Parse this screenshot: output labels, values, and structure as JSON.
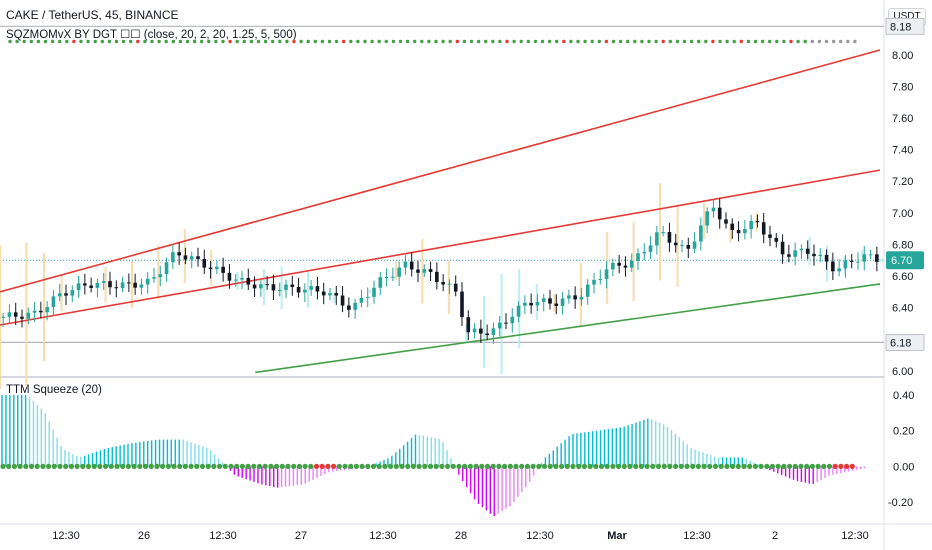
{
  "header": {
    "symbol_line": "CAKE / TetherUS, 45, BINANCE",
    "study_top": "SQZMOMvX BY DGT ☐☐ (close, 20, 2, 20, 1.25, 5, 500)",
    "study_bottom": "TTM Squeeze (20)",
    "unit_button": "USDT"
  },
  "colors": {
    "bull_candle": "#26a69a",
    "bear_candle": "#131722",
    "channel_upper": "#e53935",
    "support_line": "#43a047",
    "momentum_up": "#4dd0e1",
    "momentum_down": "#e040fb",
    "squeeze_on": "#e53935",
    "squeeze_off": "#43a047"
  },
  "chart_data": [
    {
      "type": "candlestick",
      "y_axis_ticks": [
        "8.00",
        "7.80",
        "7.60",
        "7.40",
        "7.20",
        "7.00",
        "6.80",
        "6.60",
        "6.40",
        "6.00"
      ],
      "ylim": [
        5.98,
        8.22
      ],
      "markers": {
        "horizontal_levels": [
          {
            "label": "8.18",
            "value": 8.18
          },
          {
            "label": "6.18",
            "value": 6.18
          }
        ],
        "last_price": {
          "label": "6.70",
          "value": 6.7
        }
      },
      "x_tick_labels": [
        "12:30",
        "26",
        "12:30",
        "27",
        "12:30",
        "28",
        "12:30",
        "Mar",
        "12:30",
        "2",
        "12:30"
      ],
      "close_path": [
        {
          "x": 0,
          "y": 6.34
        },
        {
          "x": 0.04,
          "y": 6.36
        },
        {
          "x": 0.07,
          "y": 6.49
        },
        {
          "x": 0.1,
          "y": 6.55
        },
        {
          "x": 0.14,
          "y": 6.54
        },
        {
          "x": 0.17,
          "y": 6.56
        },
        {
          "x": 0.2,
          "y": 6.75
        },
        {
          "x": 0.23,
          "y": 6.68
        },
        {
          "x": 0.27,
          "y": 6.57
        },
        {
          "x": 0.3,
          "y": 6.53
        },
        {
          "x": 0.34,
          "y": 6.52
        },
        {
          "x": 0.37,
          "y": 6.5
        },
        {
          "x": 0.4,
          "y": 6.39
        },
        {
          "x": 0.43,
          "y": 6.56
        },
        {
          "x": 0.46,
          "y": 6.67
        },
        {
          "x": 0.49,
          "y": 6.61
        },
        {
          "x": 0.52,
          "y": 6.49
        },
        {
          "x": 0.53,
          "y": 6.24
        },
        {
          "x": 0.56,
          "y": 6.25
        },
        {
          "x": 0.6,
          "y": 6.44
        },
        {
          "x": 0.63,
          "y": 6.43
        },
        {
          "x": 0.66,
          "y": 6.48
        },
        {
          "x": 0.69,
          "y": 6.65
        },
        {
          "x": 0.72,
          "y": 6.69
        },
        {
          "x": 0.75,
          "y": 6.88
        },
        {
          "x": 0.78,
          "y": 6.75
        },
        {
          "x": 0.81,
          "y": 7.05
        },
        {
          "x": 0.83,
          "y": 6.87
        },
        {
          "x": 0.86,
          "y": 6.94
        },
        {
          "x": 0.89,
          "y": 6.74
        },
        {
          "x": 0.92,
          "y": 6.76
        },
        {
          "x": 0.95,
          "y": 6.64
        },
        {
          "x": 0.98,
          "y": 6.73
        },
        {
          "x": 1.0,
          "y": 6.7
        }
      ],
      "trend_lines": [
        {
          "role": "channel-upper",
          "from": [
            0,
            6.5
          ],
          "to": [
            1,
            8.03
          ]
        },
        {
          "role": "channel-middle",
          "from": [
            0,
            6.29
          ],
          "to": [
            1,
            7.27
          ]
        },
        {
          "role": "support",
          "from": [
            0.29,
            5.99
          ],
          "to": [
            1,
            6.55
          ]
        }
      ],
      "squeeze_dot_colors_top": "mostly green with red dots interspersed; grey dots at right end"
    },
    {
      "type": "histogram",
      "y_axis_ticks": [
        "0.40",
        "0.20",
        "0.00",
        "-0.20"
      ],
      "ylim": [
        -0.3,
        0.45
      ],
      "bars": [
        {
          "x": 0.0,
          "y": 0.4
        },
        {
          "x": 0.03,
          "y": 0.4
        },
        {
          "x": 0.05,
          "y": 0.3
        },
        {
          "x": 0.07,
          "y": 0.1
        },
        {
          "x": 0.09,
          "y": 0.05
        },
        {
          "x": 0.12,
          "y": 0.1
        },
        {
          "x": 0.15,
          "y": 0.13
        },
        {
          "x": 0.18,
          "y": 0.15
        },
        {
          "x": 0.21,
          "y": 0.15
        },
        {
          "x": 0.24,
          "y": 0.1
        },
        {
          "x": 0.27,
          "y": -0.05
        },
        {
          "x": 0.3,
          "y": -0.1
        },
        {
          "x": 0.32,
          "y": -0.12
        },
        {
          "x": 0.35,
          "y": -0.1
        },
        {
          "x": 0.38,
          "y": -0.03
        },
        {
          "x": 0.42,
          "y": -0.01
        },
        {
          "x": 0.45,
          "y": 0.05
        },
        {
          "x": 0.48,
          "y": 0.18
        },
        {
          "x": 0.51,
          "y": 0.15
        },
        {
          "x": 0.53,
          "y": -0.05
        },
        {
          "x": 0.55,
          "y": -0.2
        },
        {
          "x": 0.57,
          "y": -0.28
        },
        {
          "x": 0.59,
          "y": -0.22
        },
        {
          "x": 0.61,
          "y": -0.1
        },
        {
          "x": 0.63,
          "y": 0.05
        },
        {
          "x": 0.66,
          "y": 0.18
        },
        {
          "x": 0.69,
          "y": 0.2
        },
        {
          "x": 0.72,
          "y": 0.22
        },
        {
          "x": 0.75,
          "y": 0.27
        },
        {
          "x": 0.77,
          "y": 0.23
        },
        {
          "x": 0.8,
          "y": 0.1
        },
        {
          "x": 0.83,
          "y": 0.05
        },
        {
          "x": 0.86,
          "y": 0.05
        },
        {
          "x": 0.89,
          "y": -0.02
        },
        {
          "x": 0.92,
          "y": -0.08
        },
        {
          "x": 0.94,
          "y": -0.1
        },
        {
          "x": 0.96,
          "y": -0.05
        },
        {
          "x": 0.98,
          "y": -0.03
        },
        {
          "x": 1.0,
          "y": -0.01
        }
      ],
      "zero_line_dots": "green with red dots at right end"
    }
  ]
}
